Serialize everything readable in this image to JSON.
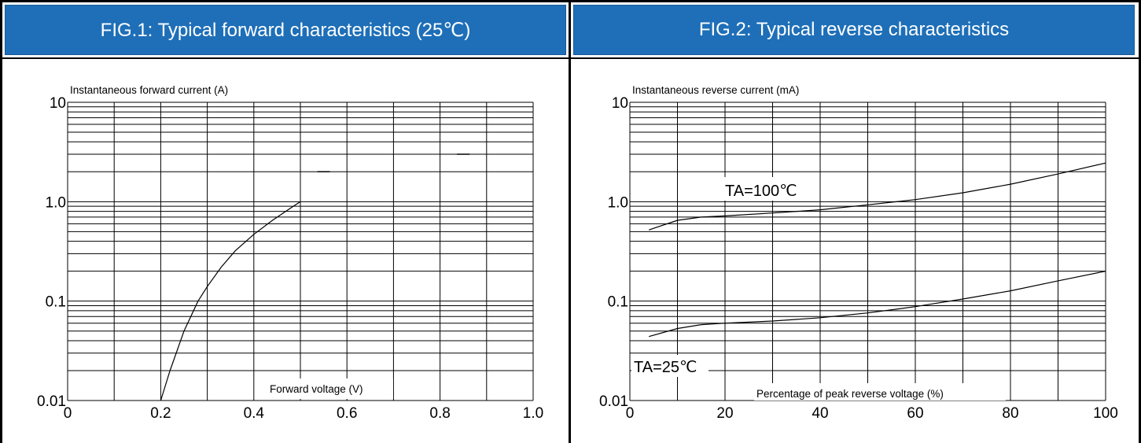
{
  "panels": [
    {
      "header": "FIG.1: Typical forward characteristics (25℃)",
      "chart_data": {
        "type": "line",
        "title": "",
        "ylabel": "Instantaneous forward current (A)",
        "xlabel": "Forward voltage (V)",
        "x_ticks": [
          "0",
          "0.2",
          "0.4",
          "0.6",
          "0.8",
          "1.0"
        ],
        "y_ticks": [
          "10",
          "1.0",
          "0.1",
          "0.01"
        ],
        "xlim": [
          0,
          1.0
        ],
        "ylim": [
          0.01,
          10
        ],
        "yscale": "log",
        "grid": true,
        "series": [
          {
            "x": [
              0.2,
              0.22,
              0.25,
              0.28,
              0.3,
              0.33,
              0.36,
              0.4,
              0.44,
              0.48,
              0.5
            ],
            "y": [
              0.01,
              0.02,
              0.05,
              0.1,
              0.14,
              0.22,
              0.32,
              0.47,
              0.65,
              0.87,
              1.0
            ]
          }
        ]
      }
    },
    {
      "header": "FIG.2: Typical reverse characteristics",
      "chart_data": {
        "type": "line",
        "title": "",
        "ylabel": "Instantaneous reverse current (mA)",
        "xlabel": "Percentage of peak reverse voltage (%)",
        "x_ticks": [
          "0",
          "20",
          "40",
          "60",
          "80",
          "100"
        ],
        "y_ticks": [
          "10",
          "1.0",
          "0.1",
          "0.01"
        ],
        "xlim": [
          0,
          100
        ],
        "ylim": [
          0.01,
          10
        ],
        "yscale": "log",
        "grid": true,
        "series": [
          {
            "label": "TA=100℃",
            "x": [
              4,
              10,
              15,
              20,
              30,
              40,
              50,
              60,
              70,
              80,
              90,
              100
            ],
            "y": [
              0.52,
              0.65,
              0.7,
              0.72,
              0.77,
              0.83,
              0.93,
              1.05,
              1.23,
              1.5,
              1.9,
              2.45
            ]
          },
          {
            "label": "TA=25℃",
            "x": [
              4,
              10,
              15,
              20,
              30,
              40,
              50,
              60,
              70,
              80,
              90,
              100
            ],
            "y": [
              0.044,
              0.053,
              0.058,
              0.06,
              0.063,
              0.068,
              0.076,
              0.088,
              0.105,
              0.127,
              0.16,
              0.2
            ]
          }
        ]
      }
    }
  ],
  "fig1_marks": [
    {
      "x": 0.55,
      "y": 2
    },
    {
      "x": 0.85,
      "y": 3
    }
  ]
}
